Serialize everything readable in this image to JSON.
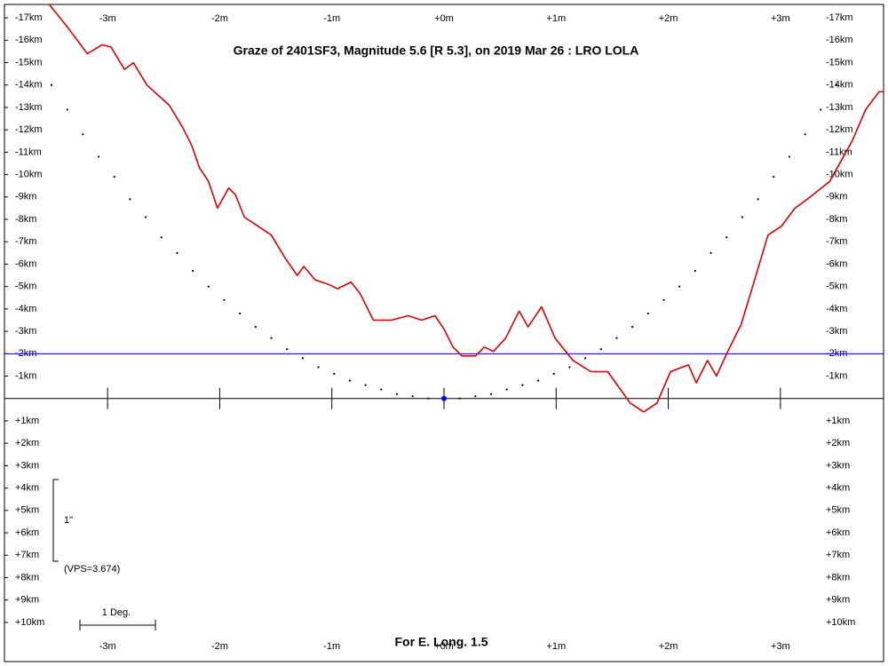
{
  "chart_data": {
    "type": "line",
    "title": "Graze of  2401SF3,  Magnitude 5.6 [R 5.3],  on 2019 Mar 26  :  LRO LOLA",
    "footer": "For E. Long. 1.5",
    "scale_label": "1\"",
    "vps_label": "(VPS=3.674)",
    "degree_label": "1 Deg.",
    "xlim": [
      -3.92,
      3.92
    ],
    "ylim": [
      -17.6,
      11.75
    ],
    "xticks": [
      {
        "value": -3,
        "label": "-3m"
      },
      {
        "value": -2,
        "label": "-2m"
      },
      {
        "value": -1,
        "label": "-1m"
      },
      {
        "value": 0,
        "label": "+0m"
      },
      {
        "value": 1,
        "label": "+1m"
      },
      {
        "value": 2,
        "label": "+2m"
      },
      {
        "value": 3,
        "label": "+3m"
      }
    ],
    "yticks": [
      {
        "value": -17,
        "label": "-17km"
      },
      {
        "value": -16,
        "label": "-16km"
      },
      {
        "value": -15,
        "label": "-15km"
      },
      {
        "value": -14,
        "label": "-14km"
      },
      {
        "value": -13,
        "label": "-13km"
      },
      {
        "value": -12,
        "label": "-12km"
      },
      {
        "value": -11,
        "label": "-11km"
      },
      {
        "value": -10,
        "label": "-10km"
      },
      {
        "value": -9,
        "label": "-9km"
      },
      {
        "value": -8,
        "label": "-8km"
      },
      {
        "value": -7,
        "label": "-7km"
      },
      {
        "value": -6,
        "label": "-6km"
      },
      {
        "value": -5,
        "label": "-5km"
      },
      {
        "value": -4,
        "label": "-4km"
      },
      {
        "value": -3,
        "label": "-3km"
      },
      {
        "value": -2,
        "label": "-2km"
      },
      {
        "value": -1,
        "label": "-1km"
      },
      {
        "value": 1,
        "label": "+1km"
      },
      {
        "value": 2,
        "label": "+2km"
      },
      {
        "value": 3,
        "label": "+3km"
      },
      {
        "value": 4,
        "label": "+4km"
      },
      {
        "value": 5,
        "label": "+5km"
      },
      {
        "value": 6,
        "label": "+6km"
      },
      {
        "value": 7,
        "label": "+7km"
      },
      {
        "value": 8,
        "label": "+8km"
      },
      {
        "value": 9,
        "label": "+9km"
      },
      {
        "value": 10,
        "label": "+10km"
      }
    ],
    "reference_line": {
      "value": -2,
      "color": "#0000cc"
    },
    "marker": {
      "x": 0,
      "y": 0,
      "color": "#0000ff"
    },
    "series": [
      {
        "color": "#dd0000",
        "style": "line",
        "x": [
          -3.52,
          -3.36,
          -3.18,
          -3.05,
          -2.97,
          -2.85,
          -2.77,
          -2.65,
          -2.45,
          -2.33,
          -2.25,
          -2.18,
          -2.1,
          -2.02,
          -1.92,
          -1.86,
          -1.78,
          -1.66,
          -1.54,
          -1.42,
          -1.31,
          -1.25,
          -1.15,
          -1.03,
          -0.95,
          -0.83,
          -0.75,
          -0.63,
          -0.47,
          -0.32,
          -0.2,
          -0.08,
          0,
          0.08,
          0.16,
          0.28,
          0.36,
          0.44,
          0.55,
          0.67,
          0.75,
          0.87,
          0.99,
          1.15,
          1.31,
          1.46,
          1.66,
          1.78,
          1.9,
          2.02,
          2.18,
          2.25,
          2.35,
          2.43,
          2.53,
          2.65,
          2.77,
          2.89,
          3.01,
          3.13,
          3.24,
          3.44,
          3.64,
          3.76,
          3.88,
          3.92
        ],
        "values": [
          -17.6,
          -16.6,
          -15.4,
          -15.8,
          -15.7,
          -14.7,
          -15.0,
          -14.0,
          -13.1,
          -12.1,
          -11.3,
          -10.3,
          -9.7,
          -8.5,
          -9.4,
          -9.1,
          -8.1,
          -7.7,
          -7.3,
          -6.3,
          -5.5,
          -5.9,
          -5.3,
          -5.1,
          -4.9,
          -5.2,
          -4.7,
          -3.5,
          -3.5,
          -3.7,
          -3.5,
          -3.7,
          -3.1,
          -2.3,
          -1.9,
          -1.9,
          -2.3,
          -2.1,
          -2.7,
          -3.9,
          -3.2,
          -4.1,
          -2.7,
          -1.7,
          -1.2,
          -1.2,
          0.2,
          0.6,
          0.2,
          -1.2,
          -1.5,
          -0.7,
          -1.7,
          -1.0,
          -2.1,
          -3.3,
          -5.3,
          -7.3,
          -7.7,
          -8.5,
          -8.9,
          -9.7,
          -11.5,
          -12.9,
          -13.7,
          -13.7
        ]
      },
      {
        "color": "#000000",
        "style": "dots",
        "x": [
          -3.5,
          -3.36,
          -3.22,
          -3.08,
          -2.94,
          -2.8,
          -2.66,
          -2.52,
          -2.38,
          -2.24,
          -2.1,
          -1.96,
          -1.82,
          -1.68,
          -1.54,
          -1.4,
          -1.26,
          -1.12,
          -0.98,
          -0.84,
          -0.7,
          -0.56,
          -0.42,
          -0.28,
          -0.14,
          0,
          0.14,
          0.28,
          0.42,
          0.56,
          0.7,
          0.84,
          0.98,
          1.12,
          1.26,
          1.4,
          1.54,
          1.68,
          1.82,
          1.96,
          2.1,
          2.24,
          2.38,
          2.52,
          2.66,
          2.8,
          2.94,
          3.08,
          3.22,
          3.36,
          3.5
        ],
        "values": [
          -14.0,
          -12.9,
          -11.8,
          -10.8,
          -9.9,
          -8.9,
          -8.1,
          -7.2,
          -6.5,
          -5.7,
          -5.0,
          -4.4,
          -3.8,
          -3.2,
          -2.7,
          -2.2,
          -1.8,
          -1.4,
          -1.1,
          -0.8,
          -0.6,
          -0.4,
          -0.2,
          -0.1,
          0,
          0,
          0,
          -0.1,
          -0.2,
          -0.4,
          -0.6,
          -0.8,
          -1.1,
          -1.4,
          -1.8,
          -2.2,
          -2.7,
          -3.2,
          -3.8,
          -4.4,
          -5.0,
          -5.7,
          -6.5,
          -7.2,
          -8.1,
          -8.9,
          -9.9,
          -10.8,
          -11.8,
          -12.9,
          -14.0
        ]
      }
    ]
  }
}
